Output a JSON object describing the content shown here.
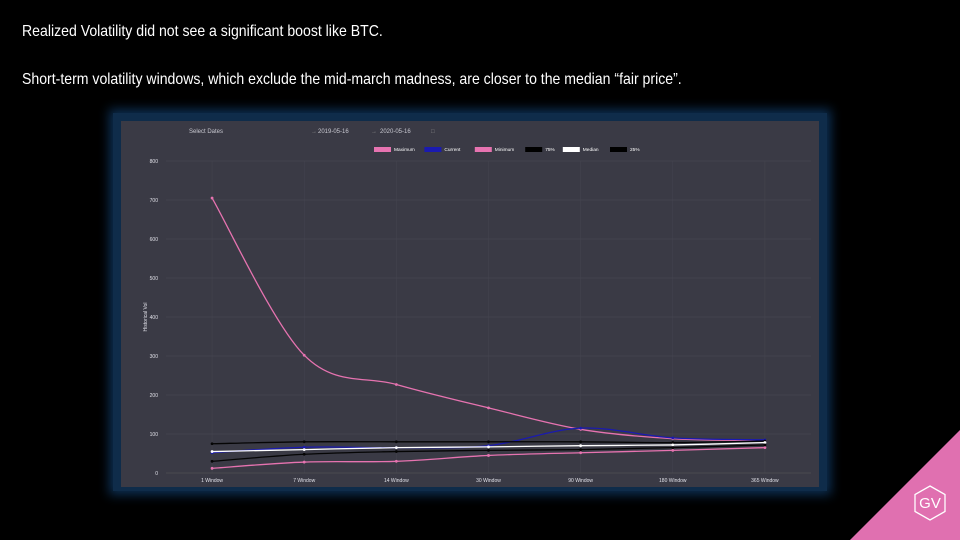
{
  "headline": {
    "line1": "Realized Volatility did not see a significant boost like BTC.",
    "line2": "Short-term volatility windows, which exclude the mid-march madness, are closer to the median “fair price”."
  },
  "controls": {
    "select_dates_label": "Select Dates",
    "start_date": "2019-05-16",
    "end_date": "2020-05-16",
    "arrow": "→",
    "calendar_icon": "calendar-icon"
  },
  "logo": {
    "text": "GV",
    "color": "#e070b0"
  },
  "chart_data": {
    "type": "line",
    "categories": [
      "1 Window",
      "7 Window",
      "14 Window",
      "30 Window",
      "90 Window",
      "180 Window",
      "365 Window"
    ],
    "ylabel": "Historical Vol",
    "xlabel": "",
    "ylim": [
      0,
      800
    ],
    "yticks": [
      0,
      100,
      200,
      300,
      400,
      500,
      600,
      700,
      800
    ],
    "grid": true,
    "legend_position": "top",
    "series": [
      {
        "name": "Maximum",
        "color": "#e673b0",
        "swatch": "#e673b0",
        "values": [
          705,
          302,
          227,
          167,
          112,
          88,
          83
        ]
      },
      {
        "name": "Current",
        "color": "#1a1ab0",
        "swatch": "#1a1ab0",
        "values": [
          52,
          66,
          65,
          70,
          115,
          90,
          85
        ]
      },
      {
        "name": "Minimum",
        "color": "#e673b0",
        "swatch": "#e673b0",
        "values": [
          12,
          28,
          30,
          45,
          52,
          58,
          65
        ]
      },
      {
        "name": "75%",
        "color": "#050505",
        "swatch": "#000000",
        "values": [
          75,
          80,
          80,
          80,
          80,
          78,
          82
        ]
      },
      {
        "name": "Median",
        "color": "#ffffff",
        "swatch": "#ffffff",
        "values": [
          55,
          60,
          65,
          67,
          70,
          72,
          78
        ]
      },
      {
        "name": "25%",
        "color": "#050505",
        "swatch": "#000000",
        "values": [
          30,
          48,
          55,
          58,
          60,
          65,
          72
        ]
      }
    ]
  }
}
